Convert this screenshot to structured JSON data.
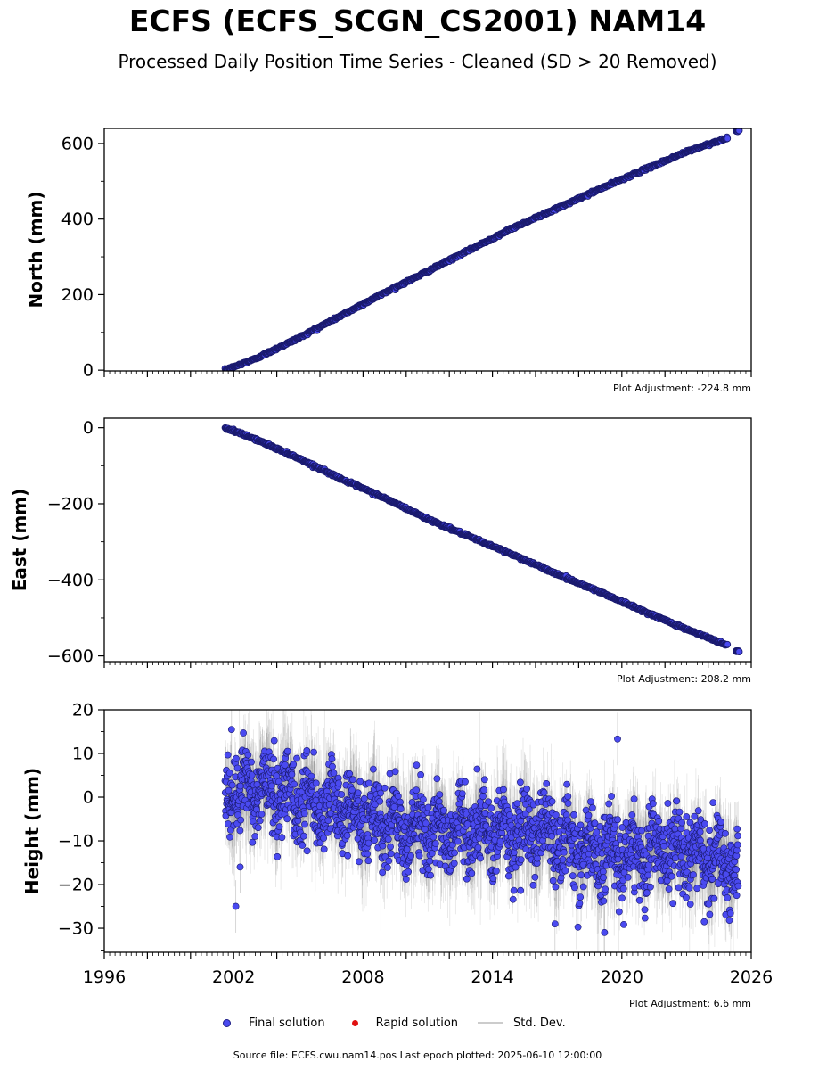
{
  "title": "ECFS (ECFS_SCGN_CS2001) NAM14",
  "subtitle": "Processed Daily Position Time Series - Cleaned (SD > 20 Removed)",
  "legend": {
    "final": "Final solution",
    "rapid": "Rapid solution",
    "std": "Std. Dev."
  },
  "footer": "Source file: ECFS.cwu.nam14.pos  Last epoch plotted: 2025-06-10 12:00:00",
  "colors": {
    "final_fill": "#4a4af0",
    "final_edge": "#1a1a6e",
    "rapid": "#e01010",
    "std": "#cccccc"
  },
  "chart_data": [
    {
      "type": "scatter",
      "ylabel": "North (mm)",
      "adjustment": "Plot Adjustment: -224.8 mm",
      "xlim": [
        1996,
        2026
      ],
      "ylim": [
        -2,
        640
      ],
      "yticks": [
        0,
        200,
        400,
        600
      ],
      "ytick_labels": [
        "0",
        "200",
        "400",
        "600"
      ],
      "series": [
        {
          "x": [
            2001.6,
            2003,
            2005,
            2007,
            2009,
            2011,
            2013,
            2015,
            2017,
            2019,
            2021,
            2023,
            2024.9
          ],
          "y": [
            0,
            30,
            85,
            145,
            205,
            262,
            320,
            378,
            428,
            480,
            530,
            578,
            615
          ]
        },
        {
          "x": [
            2025.3,
            2025.45
          ],
          "y": [
            633,
            634
          ]
        }
      ]
    },
    {
      "type": "scatter",
      "ylabel": "East (mm)",
      "adjustment": "Plot Adjustment: 208.2 mm",
      "xlim": [
        1996,
        2026
      ],
      "ylim": [
        -615,
        25
      ],
      "yticks": [
        0,
        -200,
        -400,
        -600
      ],
      "ytick_labels": [
        "0",
        "−200",
        "−400",
        "−600"
      ],
      "series": [
        {
          "x": [
            2001.6,
            2003,
            2005,
            2007,
            2009,
            2011,
            2013,
            2015,
            2017,
            2019,
            2021,
            2023,
            2024.9
          ],
          "y": [
            0,
            -30,
            -80,
            -135,
            -185,
            -240,
            -288,
            -335,
            -385,
            -432,
            -482,
            -530,
            -572
          ]
        },
        {
          "x": [
            2025.3,
            2025.45
          ],
          "y": [
            -587,
            -588
          ]
        }
      ]
    },
    {
      "type": "scatter",
      "ylabel": "Height (mm)",
      "adjustment": "Plot Adjustment: 6.6 mm",
      "xlim": [
        1996,
        2026
      ],
      "ylim": [
        -35.5,
        20
      ],
      "yticks": [
        20,
        10,
        0,
        -10,
        -20,
        -30
      ],
      "ytick_labels": [
        "20",
        "10",
        "0",
        "−10",
        "−20",
        "−30"
      ],
      "xticks": [
        1996,
        2002,
        2008,
        2014,
        2020,
        2026
      ],
      "xtick_labels": [
        "1996",
        "2002",
        "2008",
        "2014",
        "2020",
        "2026"
      ],
      "trend": {
        "x": [
          2001.6,
          2004,
          2007,
          2010,
          2013,
          2016,
          2019,
          2022,
          2024,
          2025.4
        ],
        "y": [
          1,
          2,
          -3,
          -7,
          -8,
          -8,
          -13,
          -12,
          -14,
          -16
        ]
      },
      "scatter_sd": 6,
      "outliers": {
        "x": [
          2001.9,
          2002.1,
          2019.8,
          2002.3,
          2016.9,
          2019.2
        ],
        "y": [
          15.5,
          -25,
          13.3,
          -16,
          -29,
          -31
        ]
      }
    }
  ]
}
